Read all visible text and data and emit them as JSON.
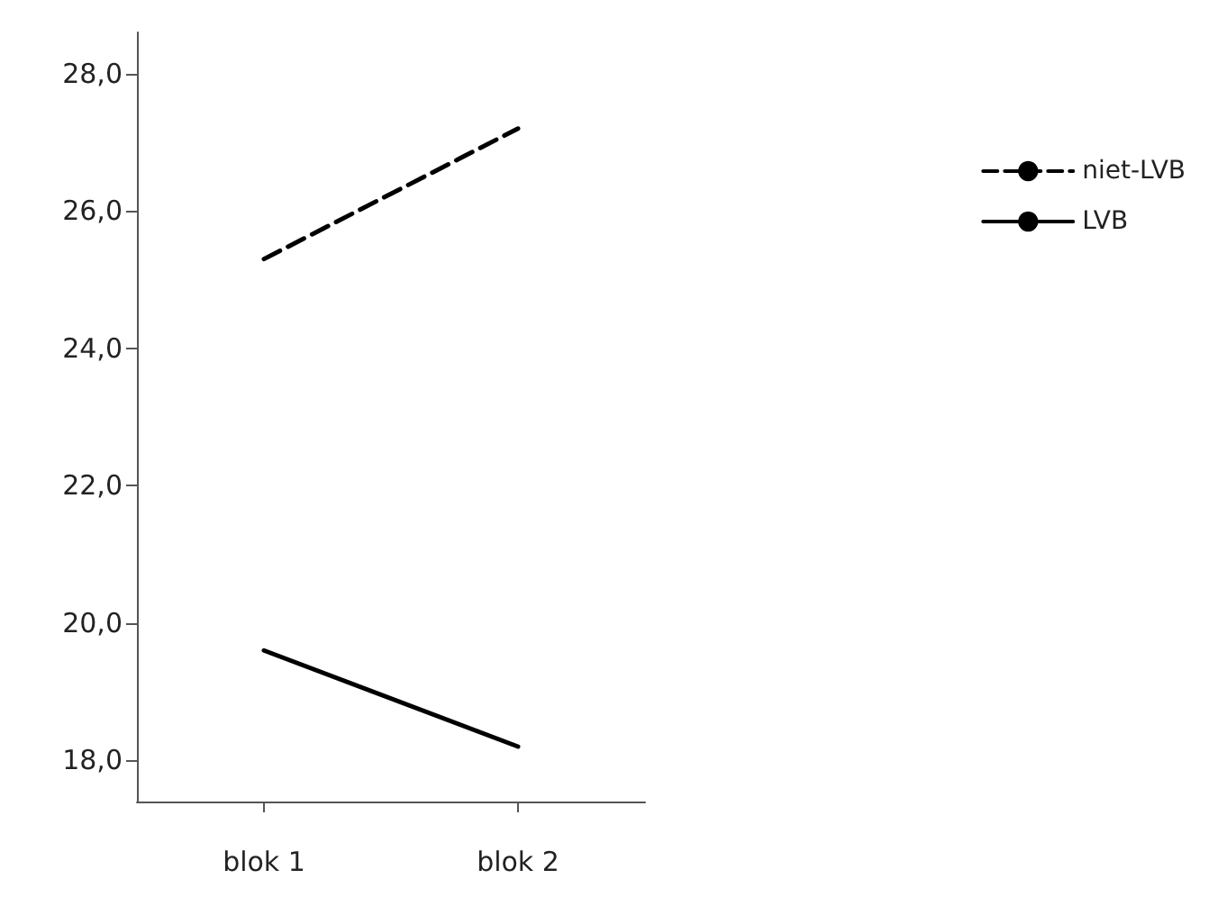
{
  "chart_data": {
    "type": "line",
    "categories": [
      "blok 1",
      "blok 2"
    ],
    "series": [
      {
        "name": "niet-LVB",
        "color": "#000000",
        "line_style": "dashed",
        "values": [
          25.3,
          27.2
        ]
      },
      {
        "name": "LVB",
        "color": "#000000",
        "line_style": "solid",
        "values": [
          19.6,
          18.2
        ]
      }
    ],
    "ylim": [
      17.4,
      28.6
    ],
    "yticks": [
      {
        "value": 18,
        "label": "18,0"
      },
      {
        "value": 20,
        "label": "20,0"
      },
      {
        "value": 22,
        "label": "22,0"
      },
      {
        "value": 24,
        "label": "24,0"
      },
      {
        "value": 26,
        "label": "26,0"
      },
      {
        "value": 28,
        "label": "28,0"
      }
    ],
    "grid": false,
    "legend": "top right",
    "marker": "none"
  }
}
